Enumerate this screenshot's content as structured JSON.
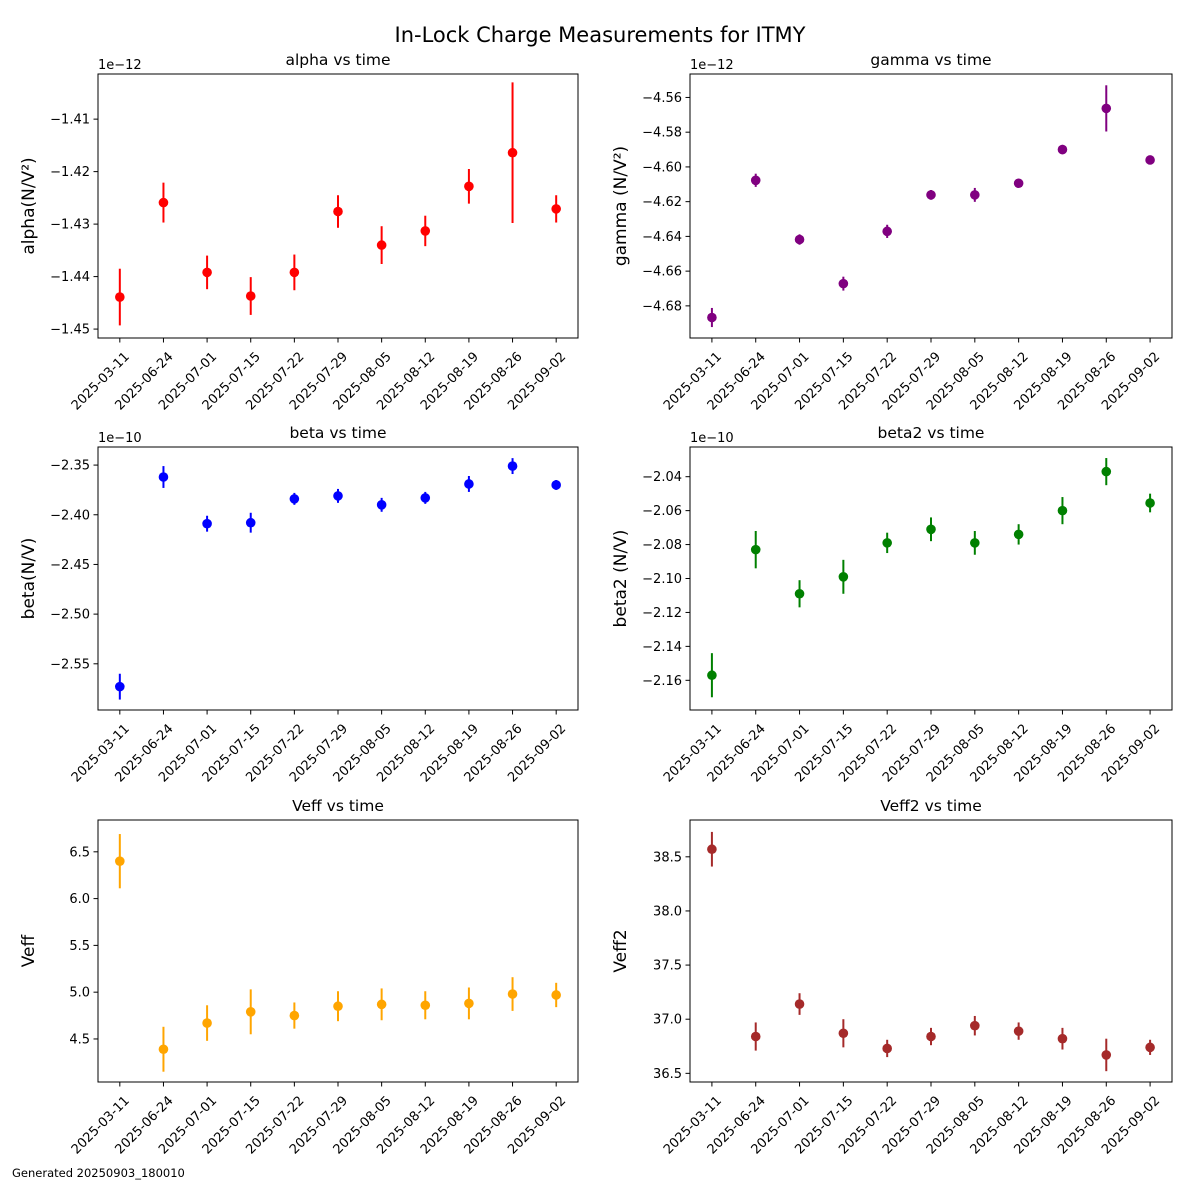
{
  "suptitle": "In-Lock Charge Measurements for ITMY",
  "footer": "Generated 20250903_180010",
  "chart_data": [
    {
      "type": "scatter",
      "title": "alpha vs time",
      "ylabel": "alpha(N/V²)",
      "offset_text": "1e−12",
      "color": "#ff0000",
      "x": [
        "2025-03-11",
        "2025-06-24",
        "2025-07-01",
        "2025-07-15",
        "2025-07-22",
        "2025-07-29",
        "2025-08-05",
        "2025-08-12",
        "2025-08-19",
        "2025-08-26",
        "2025-09-02"
      ],
      "values": [
        -1.4439,
        -1.4259,
        -1.4392,
        -1.4437,
        -1.4392,
        -1.4276,
        -1.434,
        -1.4313,
        -1.4228,
        -1.4164,
        -1.4271
      ],
      "errors": [
        0.0054,
        0.0038,
        0.0032,
        0.0036,
        0.0034,
        0.0031,
        0.0036,
        0.0029,
        0.0033,
        0.0134,
        0.0026
      ],
      "ylim": [
        -1.4517,
        -1.4014
      ],
      "yticks": [
        -1.45,
        -1.44,
        -1.43,
        -1.42,
        -1.41
      ],
      "ytick_labels": [
        "−1.45",
        "−1.44",
        "−1.43",
        "−1.42",
        "−1.41"
      ],
      "grid": false
    },
    {
      "type": "scatter",
      "title": "gamma vs time",
      "ylabel": "gamma (N/V²)",
      "offset_text": "1e−12",
      "color": "#800080",
      "x": [
        "2025-03-11",
        "2025-06-24",
        "2025-07-01",
        "2025-07-15",
        "2025-07-22",
        "2025-07-29",
        "2025-08-05",
        "2025-08-12",
        "2025-08-19",
        "2025-08-26",
        "2025-09-02"
      ],
      "values": [
        -4.6867,
        -4.6077,
        -4.6418,
        -4.6672,
        -4.6371,
        -4.6161,
        -4.6161,
        -4.6094,
        -4.59,
        -4.5663,
        -4.596
      ],
      "errors": [
        0.0055,
        0.0038,
        0.003,
        0.004,
        0.0038,
        0.0028,
        0.004,
        0.0025,
        0.0027,
        0.0133,
        0.002
      ],
      "ylim": [
        -4.6985,
        -4.5465
      ],
      "yticks": [
        -4.68,
        -4.66,
        -4.64,
        -4.62,
        -4.6,
        -4.58,
        -4.56
      ],
      "ytick_labels": [
        "−4.68",
        "−4.66",
        "−4.64",
        "−4.62",
        "−4.60",
        "−4.58",
        "−4.56"
      ],
      "grid": false
    },
    {
      "type": "scatter",
      "title": "beta vs time",
      "ylabel": "beta(N/V)",
      "offset_text": "1e−10",
      "color": "#0000ff",
      "x": [
        "2025-03-11",
        "2025-06-24",
        "2025-07-01",
        "2025-07-15",
        "2025-07-22",
        "2025-07-29",
        "2025-08-05",
        "2025-08-12",
        "2025-08-19",
        "2025-08-26",
        "2025-09-02"
      ],
      "values": [
        -2.573,
        -2.362,
        -2.409,
        -2.408,
        -2.384,
        -2.381,
        -2.39,
        -2.383,
        -2.369,
        -2.351,
        -2.37
      ],
      "errors": [
        0.013,
        0.011,
        0.008,
        0.01,
        0.006,
        0.007,
        0.007,
        0.006,
        0.008,
        0.008,
        0.005
      ],
      "ylim": [
        -2.5965,
        -2.3318
      ],
      "yticks": [
        -2.55,
        -2.5,
        -2.45,
        -2.4,
        -2.35
      ],
      "ytick_labels": [
        "−2.55",
        "−2.50",
        "−2.45",
        "−2.40",
        "−2.35"
      ],
      "grid": false
    },
    {
      "type": "scatter",
      "title": "beta2 vs time",
      "ylabel": "beta2 (N/V)",
      "offset_text": "1e−10",
      "color": "#008000",
      "x": [
        "2025-03-11",
        "2025-06-24",
        "2025-07-01",
        "2025-07-15",
        "2025-07-22",
        "2025-07-29",
        "2025-08-05",
        "2025-08-12",
        "2025-08-19",
        "2025-08-26",
        "2025-09-02"
      ],
      "values": [
        -2.157,
        -2.083,
        -2.109,
        -2.099,
        -2.079,
        -2.071,
        -2.079,
        -2.074,
        -2.06,
        -2.037,
        -2.0555
      ],
      "errors": [
        0.013,
        0.011,
        0.008,
        0.01,
        0.006,
        0.007,
        0.007,
        0.006,
        0.008,
        0.008,
        0.0055
      ],
      "ylim": [
        -2.1775,
        -2.0225
      ],
      "yticks": [
        -2.16,
        -2.14,
        -2.12,
        -2.1,
        -2.08,
        -2.06,
        -2.04
      ],
      "ytick_labels": [
        "−2.16",
        "−2.14",
        "−2.12",
        "−2.10",
        "−2.08",
        "−2.06",
        "−2.04"
      ],
      "grid": false
    },
    {
      "type": "scatter",
      "title": "Veff vs time",
      "ylabel": "Veff",
      "offset_text": "",
      "color": "#ffa500",
      "x": [
        "2025-03-11",
        "2025-06-24",
        "2025-07-01",
        "2025-07-15",
        "2025-07-22",
        "2025-07-29",
        "2025-08-05",
        "2025-08-12",
        "2025-08-19",
        "2025-08-26",
        "2025-09-02"
      ],
      "values": [
        6.4,
        4.39,
        4.67,
        4.79,
        4.75,
        4.85,
        4.87,
        4.86,
        4.88,
        4.98,
        4.97
      ],
      "errors": [
        0.29,
        0.24,
        0.19,
        0.24,
        0.14,
        0.16,
        0.17,
        0.15,
        0.17,
        0.18,
        0.13
      ],
      "ylim": [
        4.04,
        6.84
      ],
      "yticks": [
        4.5,
        5.0,
        5.5,
        6.0,
        6.5
      ],
      "ytick_labels": [
        "4.5",
        "5.0",
        "5.5",
        "6.0",
        "6.5"
      ],
      "grid": false
    },
    {
      "type": "scatter",
      "title": "Veff2 vs time",
      "ylabel": "Veff2",
      "offset_text": "",
      "color": "#a52a2a",
      "x": [
        "2025-03-11",
        "2025-06-24",
        "2025-07-01",
        "2025-07-15",
        "2025-07-22",
        "2025-07-29",
        "2025-08-05",
        "2025-08-12",
        "2025-08-19",
        "2025-08-26",
        "2025-09-02"
      ],
      "values": [
        38.57,
        36.84,
        37.14,
        36.87,
        36.73,
        36.84,
        36.94,
        36.89,
        36.82,
        36.67,
        36.74
      ],
      "errors": [
        0.16,
        0.13,
        0.1,
        0.13,
        0.08,
        0.08,
        0.09,
        0.08,
        0.1,
        0.15,
        0.07
      ],
      "ylim": [
        36.42,
        38.84
      ],
      "yticks": [
        36.5,
        37.0,
        37.5,
        38.0,
        38.5
      ],
      "ytick_labels": [
        "36.5",
        "37.0",
        "37.5",
        "38.0",
        "38.5"
      ],
      "grid": false
    }
  ]
}
